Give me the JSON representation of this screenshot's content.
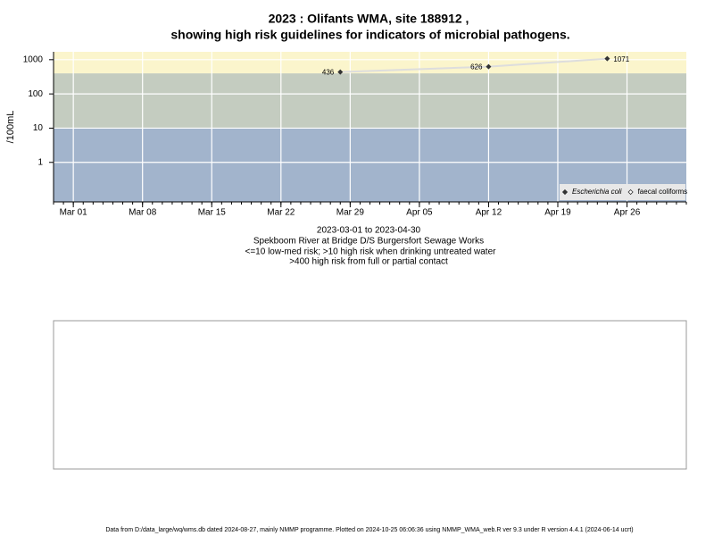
{
  "chart_data": {
    "type": "line",
    "title": "2023 : Olifants WMA, site 188912 ,",
    "subtitle": "showing high risk guidelines for indicators of microbial pathogens.",
    "ylabel": "/100mL",
    "log_y": true,
    "ylim": [
      0.07,
      1700
    ],
    "yticks": [
      1,
      10,
      100,
      1000
    ],
    "xlim": [
      "Feb 27",
      "May 02"
    ],
    "xticks": [
      "Mar 01",
      "Mar 08",
      "Mar 15",
      "Mar 22",
      "Mar 29",
      "Apr 05",
      "Apr 12",
      "Apr 19",
      "Apr 26"
    ],
    "x": [
      "Mar 28",
      "Apr 12",
      "Apr 24"
    ],
    "series": [
      {
        "name": "Escherichia coli",
        "color": "#333333",
        "values": [
          436,
          626,
          1071
        ]
      },
      {
        "name": "faecal coliforms",
        "color": "#333333",
        "values": [
          null,
          null,
          null
        ]
      }
    ],
    "line_color": "#dddddd",
    "risk_thresholds": [
      10,
      400
    ],
    "band_colors": [
      "#a2b4cc",
      "#c4ccc0",
      "#fbf5cc"
    ],
    "grid": true,
    "legend": "bottom-right",
    "notes": [
      "2023-03-01 to 2023-04-30",
      "Spekboom River at Bridge D/S Burgersfort Sewage Works",
      "<=10 low-med risk; >10 high risk when drinking untreated water",
      ">400 high risk from full or partial contact"
    ],
    "footer": "Data from D:/data_large/wq/wms.db dated 2024-08-27, mainly NMMP programme. Plotted on 2024-10-25 06:06:36 using NMMP_WMA_web.R ver 9.3 under R version 4.4.1 (2024-06-14 ucrt)"
  }
}
